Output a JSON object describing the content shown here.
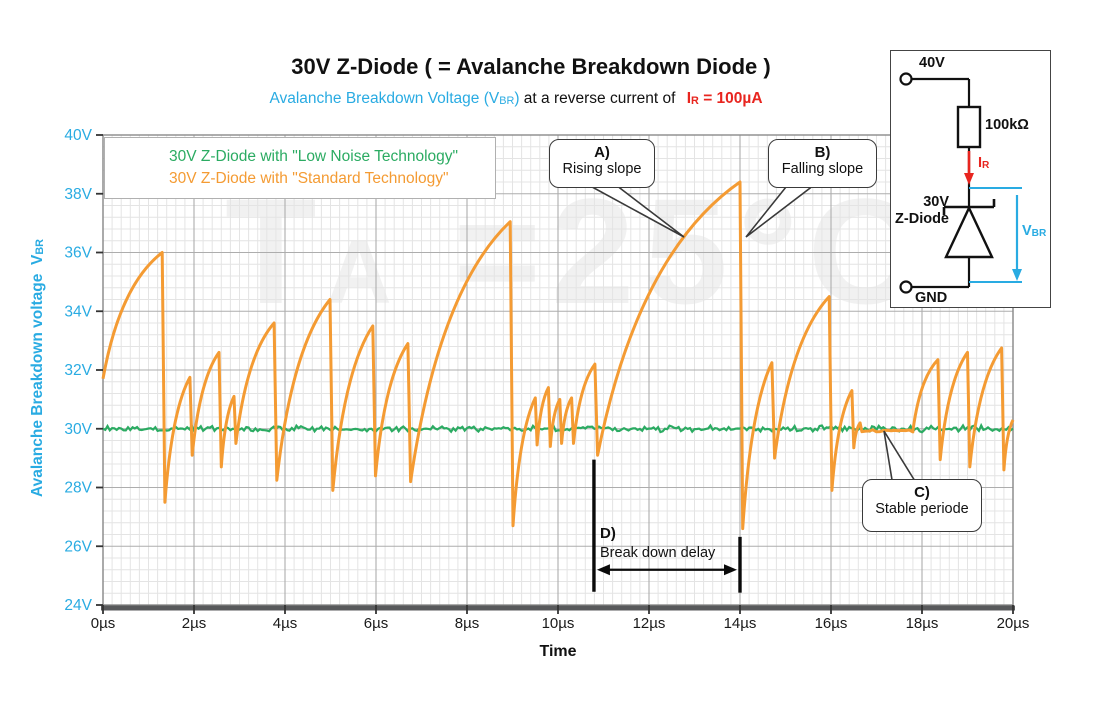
{
  "header": {
    "title": "30V Z-Diode ( = Avalanche Breakdown Diode )",
    "subtitle_cyan_pre": "Avalanche Breakdown Voltage (V",
    "subtitle_cyan_sub": "BR",
    "subtitle_cyan_post": ")",
    "subtitle_mid": "at a reverse current of",
    "subtitle_red_pre": "I",
    "subtitle_red_sub": "R",
    "subtitle_red_post": " = 100µA"
  },
  "watermark": {
    "t": "T",
    "sub": "A",
    "rest": " =25°C"
  },
  "axes": {
    "y_title_main": "Avalanche Breakdown voltage",
    "y_title_v": "V",
    "y_title_sub": "BR",
    "x_title": "Time"
  },
  "legend": {
    "items": [
      {
        "label": "30V Z-Diode with \"Low Noise Technology\"",
        "color": "#2BAB62"
      },
      {
        "label": "30V Z-Diode with \"Standard Technology\"",
        "color": "#F49B33"
      }
    ]
  },
  "annotations": {
    "a": {
      "line1": "A)",
      "line2": "Rising slope"
    },
    "b": {
      "line1": "B)",
      "line2": "Falling slope"
    },
    "c": {
      "line1": "C)",
      "line2": "Stable periode"
    },
    "d": {
      "line1": "D)",
      "line2": "Break down delay",
      "t_start": 10.79,
      "t_end": 14.0,
      "arrow_v": 25.2,
      "left_bar_v": [
        24.45,
        28.95
      ],
      "right_bar_v": [
        24.42,
        26.32
      ]
    }
  },
  "circuit": {
    "supply": "40V",
    "resistor": "100kΩ",
    "current_pre": "I",
    "current_sub": "R",
    "diode_line1": "30V",
    "diode_line2": "Z-Diode",
    "vbr_pre": "V",
    "vbr_sub": "BR",
    "ground": "GND"
  },
  "colors": {
    "green": "#2BAB62",
    "orange": "#F49B33",
    "cyan": "#29ABE2",
    "red": "#E8251F",
    "grid_minor": "#e4e4e4",
    "grid_major": "#adadad",
    "border": "#8a8a8a",
    "axis_bar": "#58595b"
  },
  "chart_data": {
    "type": "line",
    "title": "30V Z-Diode ( = Avalanche Breakdown Diode )",
    "xlabel": "Time",
    "ylabel": "Avalanche Breakdown voltage VBR",
    "xlim": [
      0,
      20
    ],
    "ylim": [
      24,
      40
    ],
    "x_major": 2,
    "x_minor": 0.2,
    "y_major": 2,
    "y_minor": 0.4,
    "x_ticks": [
      "0µs",
      "2µs",
      "4µs",
      "6µs",
      "8µs",
      "10µs",
      "12µs",
      "14µs",
      "16µs",
      "18µs",
      "20µs"
    ],
    "y_ticks": [
      "24V",
      "26V",
      "28V",
      "30V",
      "32V",
      "34V",
      "36V",
      "38V",
      "40V"
    ],
    "grid": true,
    "legend_position": "top-left",
    "series": [
      {
        "name": "30V Z-Diode with \"Low Noise Technology\"",
        "color": "#2BAB62",
        "shape": "flat-noise",
        "baseline": 30.0,
        "noise_amplitude": 0.12
      },
      {
        "name": "30V Z-Diode with \"Standard Technology\"",
        "color": "#F49B33",
        "shape": "sawtooth",
        "start": [
          0.0,
          31.7
        ],
        "segments": [
          {
            "type": "rise",
            "to": [
              1.3,
              36.0
            ]
          },
          {
            "type": "fall",
            "to": [
              1.36,
              27.5
            ]
          },
          {
            "type": "rise",
            "to": [
              1.91,
              31.75
            ]
          },
          {
            "type": "fall",
            "to": [
              1.96,
              29.1
            ]
          },
          {
            "type": "rise",
            "to": [
              2.55,
              32.6
            ]
          },
          {
            "type": "fall",
            "to": [
              2.6,
              28.7
            ]
          },
          {
            "type": "rise",
            "to": [
              2.88,
              31.1
            ]
          },
          {
            "type": "fall",
            "to": [
              2.92,
              29.5
            ]
          },
          {
            "type": "rise",
            "to": [
              3.76,
              33.6
            ]
          },
          {
            "type": "fall",
            "to": [
              3.82,
              28.25
            ]
          },
          {
            "type": "rise",
            "to": [
              4.99,
              34.4
            ]
          },
          {
            "type": "fall",
            "to": [
              5.05,
              27.9
            ]
          },
          {
            "type": "rise",
            "to": [
              5.93,
              33.5
            ]
          },
          {
            "type": "fall",
            "to": [
              5.99,
              28.4
            ]
          },
          {
            "type": "rise",
            "to": [
              6.7,
              32.9
            ]
          },
          {
            "type": "fall",
            "to": [
              6.76,
              28.2
            ]
          },
          {
            "type": "rise",
            "to": [
              8.95,
              37.05
            ]
          },
          {
            "type": "fall",
            "to": [
              9.01,
              26.7
            ]
          },
          {
            "type": "rise",
            "to": [
              9.5,
              31.05
            ]
          },
          {
            "type": "fall",
            "to": [
              9.54,
              29.45
            ]
          },
          {
            "type": "rise",
            "to": [
              9.79,
              31.4
            ]
          },
          {
            "type": "fall",
            "to": [
              9.83,
              29.4
            ]
          },
          {
            "type": "rise",
            "to": [
              10.04,
              31.0
            ]
          },
          {
            "type": "fall",
            "to": [
              10.08,
              29.5
            ]
          },
          {
            "type": "rise",
            "to": [
              10.3,
              31.05
            ]
          },
          {
            "type": "fall",
            "to": [
              10.34,
              29.5
            ]
          },
          {
            "type": "rise",
            "to": [
              10.81,
              32.2
            ]
          },
          {
            "type": "fall",
            "to": [
              10.87,
              29.1
            ]
          },
          {
            "type": "rise",
            "to": [
              14.0,
              38.4
            ]
          },
          {
            "type": "fall",
            "to": [
              14.06,
              26.6
            ]
          },
          {
            "type": "rise",
            "to": [
              14.7,
              32.25
            ]
          },
          {
            "type": "fall",
            "to": [
              14.76,
              29.0
            ]
          },
          {
            "type": "rise",
            "to": [
              15.96,
              34.5
            ]
          },
          {
            "type": "fall",
            "to": [
              16.02,
              27.9
            ]
          },
          {
            "type": "rise",
            "to": [
              16.46,
              31.3
            ]
          },
          {
            "type": "fall",
            "to": [
              16.5,
              29.35
            ]
          },
          {
            "type": "rise",
            "to": [
              16.64,
              30.2
            ]
          },
          {
            "type": "fall",
            "to": [
              16.68,
              29.9
            ]
          },
          {
            "type": "stable",
            "to": [
              17.8,
              29.93
            ]
          },
          {
            "type": "rise",
            "to": [
              18.35,
              32.35
            ]
          },
          {
            "type": "fall",
            "to": [
              18.4,
              28.95
            ]
          },
          {
            "type": "rise",
            "to": [
              19.0,
              32.6
            ]
          },
          {
            "type": "fall",
            "to": [
              19.05,
              28.7
            ]
          },
          {
            "type": "rise",
            "to": [
              19.75,
              32.75
            ]
          },
          {
            "type": "fall",
            "to": [
              19.8,
              28.6
            ]
          },
          {
            "type": "rise",
            "to": [
              20.0,
              30.3
            ]
          }
        ]
      }
    ]
  }
}
